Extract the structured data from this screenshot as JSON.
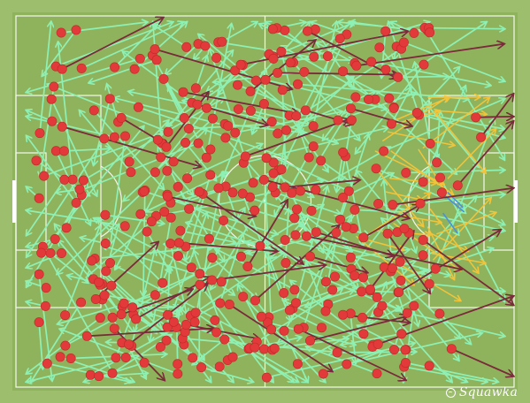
{
  "watermark": "Squawka",
  "colors": {
    "pitch": "#8fb35d",
    "pitch_border": "#9dbe6d",
    "lines": "#ffffff",
    "pass_successful": "#8ff0b4",
    "pass_unsuccessful": "#7a2a3a",
    "key_pass": "#f2c43a",
    "assist": "#4a90e2",
    "start_point": "#e23a3a"
  },
  "icons": {
    "logo": "squawka-logo-icon"
  }
}
